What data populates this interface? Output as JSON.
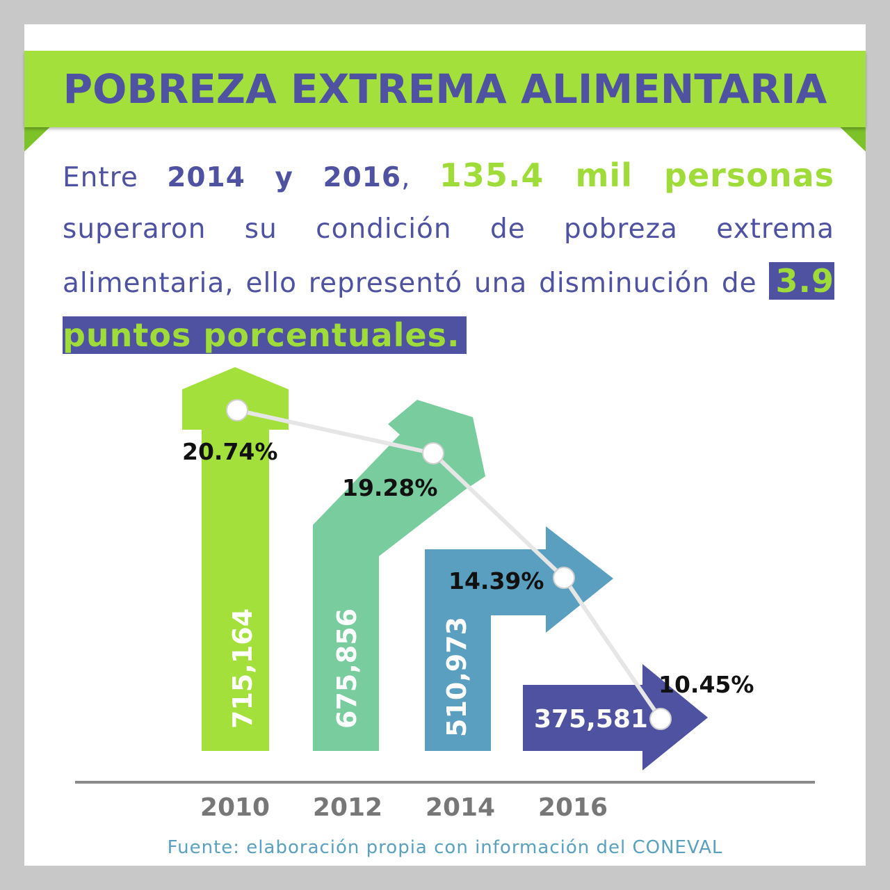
{
  "header": {
    "title": "POBREZA EXTREMA ALIMENTARIA"
  },
  "lead": {
    "p1": "Entre ",
    "year_range": "2014 y 2016",
    "p2": ", ",
    "highlight_people": "135.4 mil personas",
    "p3": " superaron su condición de pobreza extrema alimentaria, ello representó una disminución de ",
    "highlight_points": "3.9 puntos porcentuales."
  },
  "colors": {
    "green": "#a4e03c",
    "teal": "#78cc9e",
    "blue": "#5a9fc0",
    "purple": "#4e52a0",
    "text": "#4e52a0"
  },
  "chart_data": {
    "type": "bar",
    "categories": [
      "2010",
      "2012",
      "2014",
      "2016"
    ],
    "series": [
      {
        "values": [
          715164,
          675856,
          510973,
          375581
        ],
        "labels": [
          "715,164",
          "675,856",
          "510,973",
          "375,581"
        ]
      },
      {
        "values": [
          20.74,
          19.28,
          14.39,
          10.45
        ],
        "labels": [
          "20.74%",
          "19.28%",
          "14.39%",
          "10.45%"
        ]
      }
    ]
  },
  "source": "Fuente: elaboración propia con información del CONEVAL"
}
